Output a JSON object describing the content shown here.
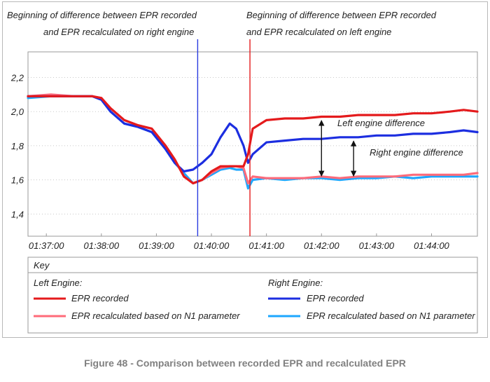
{
  "chart_data": {
    "type": "line",
    "title": "",
    "xlabel": "",
    "ylabel": "",
    "x_ticks": [
      "01:37:00",
      "01:38:00",
      "01:39:00",
      "01:40:00",
      "01:41:00",
      "01:42:00",
      "01:43:00",
      "01:44:00"
    ],
    "y_ticks": [
      "1,4",
      "1,6",
      "1,8",
      "2,0",
      "2,2"
    ],
    "xlim": [
      "01:36:40",
      "01:44:50"
    ],
    "ylim": [
      1.27,
      2.35
    ],
    "grid": "horizontal dotted",
    "x_sample_times": [
      "01:36:40",
      "01:37:05",
      "01:37:30",
      "01:37:50",
      "01:38:00",
      "01:38:10",
      "01:38:25",
      "01:38:40",
      "01:38:55",
      "01:39:10",
      "01:39:20",
      "01:39:30",
      "01:39:40",
      "01:39:50",
      "01:40:00",
      "01:40:10",
      "01:40:20",
      "01:40:27",
      "01:40:35",
      "01:40:40",
      "01:40:45",
      "01:41:00",
      "01:41:20",
      "01:41:40",
      "01:42:00",
      "01:42:20",
      "01:42:40",
      "01:43:00",
      "01:43:20",
      "01:43:40",
      "01:44:00",
      "01:44:20",
      "01:44:35",
      "01:44:50"
    ],
    "series": [
      {
        "name": "EPR recorded",
        "engine": "Left Engine",
        "color": "#e41a1c",
        "values": [
          2.09,
          2.09,
          2.09,
          2.09,
          2.08,
          2.02,
          1.95,
          1.92,
          1.9,
          1.8,
          1.72,
          1.62,
          1.58,
          1.6,
          1.65,
          1.68,
          1.68,
          1.68,
          1.68,
          1.75,
          1.9,
          1.95,
          1.96,
          1.96,
          1.97,
          1.97,
          1.98,
          1.98,
          1.98,
          1.99,
          1.99,
          2.0,
          2.01,
          2.0
        ]
      },
      {
        "name": "EPR recalculated based on N1 parameter",
        "engine": "Left Engine",
        "color": "#ff6b7a",
        "values": [
          2.09,
          2.1,
          2.09,
          2.09,
          2.08,
          2.02,
          1.95,
          1.92,
          1.9,
          1.8,
          1.72,
          1.62,
          1.58,
          1.6,
          1.64,
          1.67,
          1.68,
          1.68,
          1.67,
          1.58,
          1.62,
          1.61,
          1.61,
          1.61,
          1.62,
          1.61,
          1.62,
          1.62,
          1.62,
          1.63,
          1.63,
          1.63,
          1.63,
          1.64
        ]
      },
      {
        "name": "EPR recorded",
        "engine": "Right Engine",
        "color": "#1c2ee0",
        "values": [
          2.09,
          2.09,
          2.09,
          2.09,
          2.07,
          2.0,
          1.93,
          1.91,
          1.88,
          1.78,
          1.7,
          1.65,
          1.66,
          1.7,
          1.75,
          1.85,
          1.93,
          1.9,
          1.8,
          1.7,
          1.75,
          1.82,
          1.83,
          1.84,
          1.84,
          1.85,
          1.85,
          1.86,
          1.86,
          1.87,
          1.87,
          1.88,
          1.89,
          1.88
        ]
      },
      {
        "name": "EPR recalculated based on N1 parameter",
        "engine": "Right Engine",
        "color": "#1ea7ff",
        "values": [
          2.08,
          2.09,
          2.09,
          2.09,
          2.07,
          2.0,
          1.93,
          1.91,
          1.88,
          1.78,
          1.7,
          1.64,
          1.58,
          1.6,
          1.63,
          1.66,
          1.67,
          1.66,
          1.66,
          1.55,
          1.6,
          1.61,
          1.6,
          1.61,
          1.61,
          1.6,
          1.61,
          1.61,
          1.62,
          1.61,
          1.62,
          1.62,
          1.62,
          1.62
        ]
      }
    ],
    "event_markers": [
      {
        "time": "01:39:45",
        "color": "#2a3be0",
        "label_line1": "Beginning of difference between EPR recorded",
        "label_line2": "and EPR recalculated on right engine"
      },
      {
        "time": "01:40:42",
        "color": "#e41a1c",
        "label_line1": "Beginning of difference between EPR recorded",
        "label_line2": "and EPR recalculated on left engine"
      }
    ],
    "annotations": [
      {
        "text": "Left engine difference",
        "time": "01:42:00",
        "y_from": 1.61,
        "y_to": 1.96
      },
      {
        "text": "Right engine difference",
        "time": "01:42:35",
        "y_from": 1.61,
        "y_to": 1.84
      }
    ],
    "legend": {
      "placement": "bottom",
      "title": "Key",
      "groups": [
        {
          "name": "Left Engine:",
          "items": [
            {
              "label": "EPR recorded",
              "color": "#e41a1c"
            },
            {
              "label": "EPR recalculated based on N1 parameter",
              "color": "#ff6b7a"
            }
          ]
        },
        {
          "name": "Right Engine:",
          "items": [
            {
              "label": "EPR recorded",
              "color": "#1c2ee0"
            },
            {
              "label": "EPR recalculated based on N1 parameter",
              "color": "#1ea7ff"
            }
          ]
        }
      ]
    }
  },
  "caption": "Figure 48 - Comparison between recorded EPR and recalculated EPR"
}
